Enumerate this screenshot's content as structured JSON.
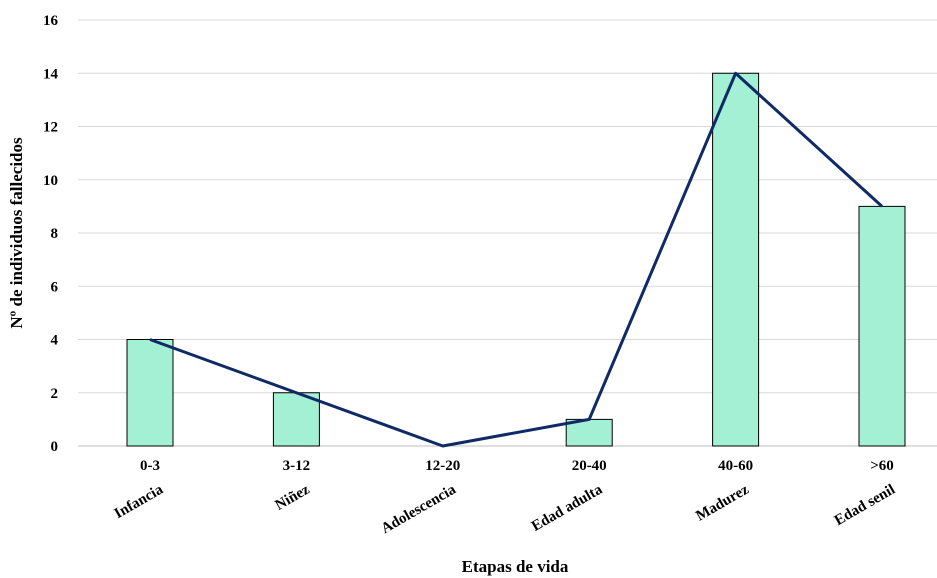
{
  "chart_data": {
    "type": "bar",
    "categories": [
      "0-3",
      "3-12",
      "12-20",
      "20-40",
      "40-60",
      ">60"
    ],
    "stage_labels": [
      "Infancia",
      "Niñez",
      "Adolescencia",
      "Edad adulta",
      "Madurez",
      "Edad senil"
    ],
    "values": [
      4,
      2,
      0,
      1,
      14,
      9
    ],
    "overlay_line": true,
    "xlabel": "Etapas de vida",
    "ylabel": "Nº de individuos fallecidos",
    "ylim": [
      0,
      16
    ],
    "yticks": [
      0,
      2,
      4,
      6,
      8,
      10,
      12,
      14,
      16
    ],
    "grid": true,
    "colors": {
      "bar_fill": "#A3F0D4",
      "bar_stroke": "#000000",
      "line": "#102A66",
      "grid": "#D9D9D9"
    }
  }
}
